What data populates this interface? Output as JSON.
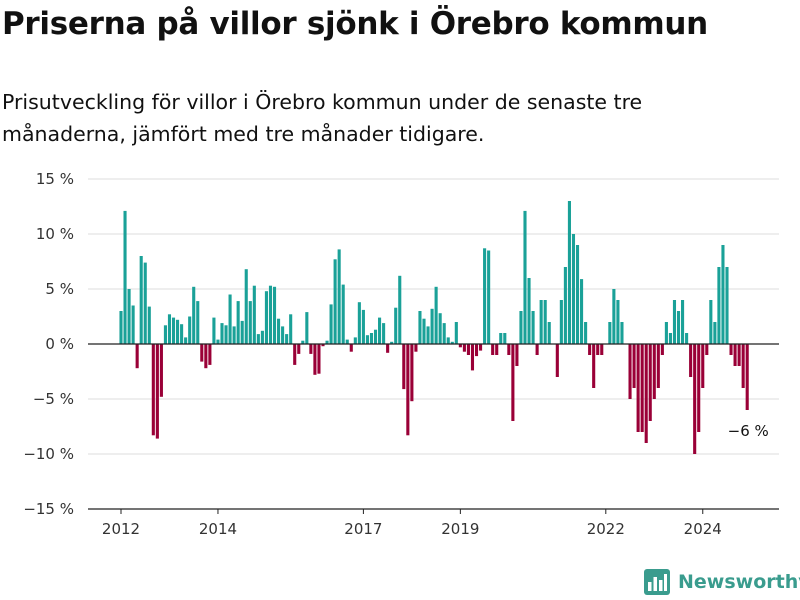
{
  "title": "Priserna på villor sjönk i Örebro kommun",
  "subtitle": "Prisutveckling för villor i Örebro kommun under de senaste tre månaderna, jämfört med tre månader tidigare.",
  "brand": "Newsworthy",
  "colors": {
    "positive": "#1aa198",
    "negative": "#9a0037",
    "grid": "#dddddd",
    "brand": "#3a9c8e"
  },
  "chart_data": {
    "type": "bar",
    "unit": "%",
    "ylim": [
      -15,
      15
    ],
    "y_ticks": [
      {
        "value": 15,
        "label": "15 %"
      },
      {
        "value": 10,
        "label": "10 %"
      },
      {
        "value": 5,
        "label": "5 %"
      },
      {
        "value": 0,
        "label": "0 %"
      },
      {
        "value": -5,
        "label": "−5 %"
      },
      {
        "value": -10,
        "label": "−10 %"
      },
      {
        "value": -15,
        "label": "−15 %"
      }
    ],
    "x_ticks": [
      {
        "value": 2012,
        "label": "2012"
      },
      {
        "value": 2014,
        "label": "2014"
      },
      {
        "value": 2017,
        "label": "2017"
      },
      {
        "value": 2019,
        "label": "2019"
      },
      {
        "value": 2022,
        "label": "2022"
      },
      {
        "value": 2024,
        "label": "2024"
      }
    ],
    "start_year": 2012,
    "bars_per_year": 12,
    "values": [
      3,
      12.1,
      5,
      3.5,
      -2.2,
      8,
      7.4,
      3.4,
      -8.3,
      -8.6,
      -4.8,
      1.7,
      2.7,
      2.4,
      2.2,
      1.8,
      0.6,
      2.5,
      5.2,
      3.9,
      -1.6,
      -2.2,
      -1.9,
      2.4,
      0.4,
      1.9,
      1.7,
      4.5,
      1.6,
      3.9,
      2.1,
      6.8,
      3.9,
      5.3,
      0.9,
      1.2,
      4.8,
      5.3,
      5.2,
      2.3,
      1.6,
      0.9,
      2.7,
      -1.9,
      -0.9,
      0.3,
      2.9,
      -0.9,
      -2.8,
      -2.7,
      -0.2,
      0.3,
      3.6,
      7.7,
      8.6,
      5.4,
      0.4,
      -0.7,
      0.6,
      3.8,
      3.1,
      0.8,
      1,
      1.3,
      2.4,
      1.9,
      -0.8,
      0.2,
      3.3,
      6.2,
      -4.1,
      -8.3,
      -5.2,
      -0.7,
      3,
      2.3,
      1.6,
      3.2,
      5.2,
      2.8,
      1.9,
      0.6,
      0.2,
      2,
      -0.3,
      -0.7,
      -1,
      -2.4,
      -1.1,
      -0.6,
      8.7,
      8.5,
      -1,
      -1,
      1,
      1,
      -1,
      -7,
      -2,
      3,
      12.1,
      6,
      3,
      -1,
      4,
      4,
      2,
      0,
      -3,
      4,
      7,
      13,
      10,
      9,
      5.9,
      2,
      -1,
      -4,
      -1,
      -1,
      0,
      2,
      5,
      4,
      2,
      0,
      -5,
      -4,
      -8,
      -8,
      -9,
      -7,
      -5,
      -4,
      -1,
      2,
      1,
      4,
      3,
      4,
      1,
      -3,
      -10,
      -8,
      -4,
      -1,
      4,
      2,
      7,
      9,
      7,
      -1,
      -2,
      -2,
      -4,
      -6
    ],
    "annotation": {
      "label": "−6 %",
      "index": 155
    }
  }
}
